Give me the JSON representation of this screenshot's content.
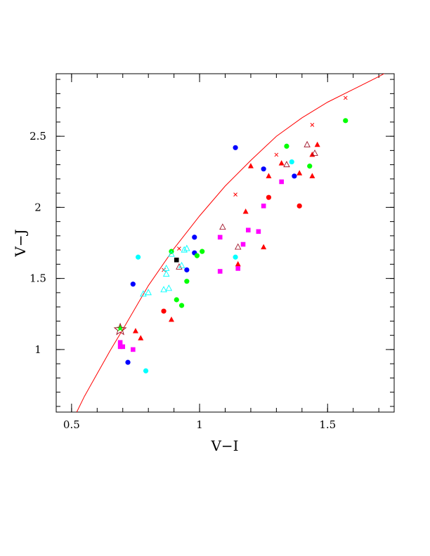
{
  "chart_data": {
    "type": "scatter",
    "xlabel": "V−I",
    "ylabel": "V−J",
    "xlim": [
      0.44,
      1.76
    ],
    "ylim": [
      0.56,
      2.94
    ],
    "xticks": [
      {
        "v": 0.5,
        "label": "0.5"
      },
      {
        "v": 1.0,
        "label": "1"
      },
      {
        "v": 1.5,
        "label": "1.5"
      }
    ],
    "yticks": [
      {
        "v": 1.0,
        "label": "1"
      },
      {
        "v": 1.5,
        "label": "1.5"
      },
      {
        "v": 2.0,
        "label": "2"
      },
      {
        "v": 2.5,
        "label": "2.5"
      }
    ],
    "minor_x_step": 0.1,
    "minor_y_step": 0.1,
    "curve": {
      "color": "#ff0000",
      "points": [
        [
          0.52,
          0.56
        ],
        [
          0.55,
          0.67
        ],
        [
          0.6,
          0.83
        ],
        [
          0.65,
          0.99
        ],
        [
          0.7,
          1.14
        ],
        [
          0.8,
          1.45
        ],
        [
          0.9,
          1.71
        ],
        [
          1.0,
          1.94
        ],
        [
          1.1,
          2.15
        ],
        [
          1.2,
          2.33
        ],
        [
          1.3,
          2.5
        ],
        [
          1.4,
          2.63
        ],
        [
          1.5,
          2.74
        ],
        [
          1.6,
          2.83
        ],
        [
          1.7,
          2.92
        ],
        [
          1.73,
          2.95
        ]
      ],
      "cross_markers": [
        [
          0.86,
          1.56
        ],
        [
          0.92,
          1.71
        ],
        [
          1.14,
          2.09
        ],
        [
          1.3,
          2.37
        ],
        [
          1.44,
          2.58
        ],
        [
          1.57,
          2.77
        ]
      ]
    },
    "series": [
      {
        "marker": "triangle-filled",
        "color": "#ff0000",
        "points": [
          [
            0.75,
            1.13
          ],
          [
            0.77,
            1.08
          ],
          [
            0.89,
            1.21
          ],
          [
            1.15,
            1.6
          ],
          [
            1.18,
            1.97
          ],
          [
            1.2,
            2.29
          ],
          [
            1.25,
            1.72
          ],
          [
            1.27,
            2.22
          ],
          [
            1.32,
            2.31
          ],
          [
            1.39,
            2.24
          ],
          [
            1.44,
            2.37
          ],
          [
            1.44,
            2.22
          ],
          [
            1.46,
            2.44
          ]
        ]
      },
      {
        "marker": "circle",
        "color": "#ff0000",
        "points": [
          [
            0.86,
            1.27
          ],
          [
            1.27,
            2.07
          ],
          [
            1.39,
            2.01
          ]
        ]
      },
      {
        "marker": "triangle-open",
        "color": "#a0152a",
        "points": [
          [
            0.92,
            1.58
          ],
          [
            1.09,
            1.86
          ],
          [
            1.15,
            1.72
          ],
          [
            1.34,
            2.3
          ],
          [
            1.42,
            2.44
          ],
          [
            1.45,
            2.38
          ]
        ]
      },
      {
        "marker": "circle",
        "color": "#0000ff",
        "points": [
          [
            0.72,
            0.91
          ],
          [
            0.74,
            1.46
          ],
          [
            0.95,
            1.56
          ],
          [
            0.98,
            1.79
          ],
          [
            0.98,
            1.68
          ],
          [
            1.14,
            2.42
          ],
          [
            1.25,
            2.27
          ],
          [
            1.37,
            2.22
          ]
        ]
      },
      {
        "marker": "circle",
        "color": "#00ff00",
        "points": [
          [
            0.89,
            1.69
          ],
          [
            0.91,
            1.35
          ],
          [
            0.93,
            1.31
          ],
          [
            0.95,
            1.48
          ],
          [
            0.99,
            1.66
          ],
          [
            1.01,
            1.69
          ],
          [
            1.34,
            2.43
          ],
          [
            1.43,
            2.29
          ],
          [
            1.57,
            2.61
          ]
        ]
      },
      {
        "marker": "circle",
        "color": "#00ffff",
        "points": [
          [
            0.76,
            1.65
          ],
          [
            0.79,
            0.85
          ],
          [
            1.14,
            1.65
          ],
          [
            1.36,
            2.32
          ]
        ]
      },
      {
        "marker": "triangle-open",
        "color": "#00ffff",
        "points": [
          [
            0.78,
            1.39
          ],
          [
            0.8,
            1.4
          ],
          [
            0.86,
            1.42
          ],
          [
            0.87,
            1.53
          ],
          [
            0.87,
            1.57
          ],
          [
            0.88,
            1.43
          ],
          [
            0.89,
            1.67
          ],
          [
            0.93,
            1.59
          ],
          [
            0.94,
            1.7
          ],
          [
            0.95,
            1.71
          ]
        ]
      },
      {
        "marker": "square",
        "color": "#ff00ff",
        "points": [
          [
            0.69,
            1.05
          ],
          [
            0.69,
            1.02
          ],
          [
            0.7,
            1.02
          ],
          [
            0.74,
            1.0
          ],
          [
            1.08,
            1.55
          ],
          [
            1.08,
            1.79
          ],
          [
            1.15,
            1.57
          ],
          [
            1.17,
            1.74
          ],
          [
            1.19,
            1.84
          ],
          [
            1.23,
            1.83
          ],
          [
            1.25,
            2.01
          ],
          [
            1.32,
            2.18
          ]
        ]
      },
      {
        "marker": "square",
        "color": "#000000",
        "points": [
          [
            0.91,
            1.63
          ]
        ]
      },
      {
        "marker": "star",
        "color": "#00ff00",
        "points": [
          [
            0.69,
            1.15
          ]
        ]
      },
      {
        "marker": "star-open",
        "color": "#a0152a",
        "points": [
          [
            0.69,
            1.14
          ]
        ]
      }
    ]
  }
}
